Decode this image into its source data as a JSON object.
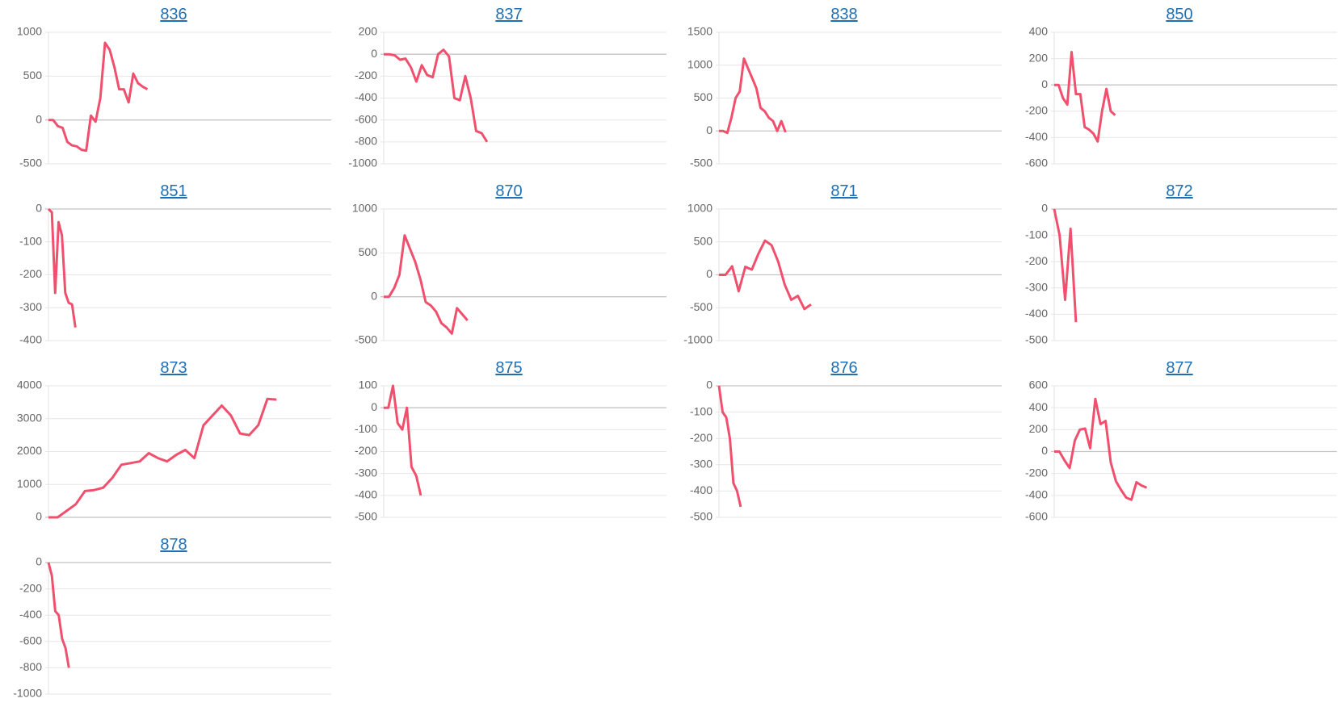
{
  "chart_data": [
    {
      "type": "line",
      "title": "836",
      "color": "#f0506e",
      "grid": true,
      "xlim": [
        0,
        60
      ],
      "ylim": [
        -500,
        1000
      ],
      "yticks": [
        -500,
        0,
        500,
        1000
      ],
      "values": [
        0,
        0,
        -70,
        -90,
        -250,
        -290,
        -300,
        -340,
        -350,
        50,
        -20,
        250,
        880,
        800,
        600,
        350,
        350,
        200,
        530,
        420,
        380,
        350
      ]
    },
    {
      "type": "line",
      "title": "837",
      "color": "#f0506e",
      "grid": true,
      "xlim": [
        0,
        52
      ],
      "ylim": [
        -1000,
        200
      ],
      "yticks": [
        -1000,
        -800,
        -600,
        -400,
        -200,
        0,
        200
      ],
      "values": [
        0,
        0,
        -10,
        -50,
        -40,
        -120,
        -250,
        -100,
        -190,
        -210,
        0,
        40,
        -20,
        -400,
        -420,
        -200,
        -400,
        -700,
        -720,
        -800
      ]
    },
    {
      "type": "line",
      "title": "838",
      "color": "#f0506e",
      "grid": true,
      "xlim": [
        0,
        68
      ],
      "ylim": [
        -500,
        1500
      ],
      "yticks": [
        -500,
        0,
        500,
        1000,
        1500
      ],
      "values": [
        0,
        0,
        -30,
        200,
        500,
        600,
        1100,
        950,
        800,
        650,
        350,
        300,
        200,
        150,
        0,
        150,
        -20
      ]
    },
    {
      "type": "line",
      "title": "850",
      "color": "#f0506e",
      "grid": true,
      "xlim": [
        0,
        65
      ],
      "ylim": [
        -600,
        400
      ],
      "yticks": [
        -600,
        -400,
        -200,
        0,
        200,
        400
      ],
      "values": [
        0,
        0,
        -100,
        -150,
        250,
        -70,
        -70,
        -320,
        -340,
        -370,
        -430,
        -200,
        -30,
        -200,
        -230
      ]
    },
    {
      "type": "line",
      "title": "851",
      "color": "#f0506e",
      "grid": true,
      "xlim": [
        0,
        84
      ],
      "ylim": [
        -400,
        0
      ],
      "yticks": [
        -400,
        -300,
        -200,
        -100,
        0
      ],
      "values": [
        0,
        -10,
        -255,
        -40,
        -80,
        -255,
        -285,
        -290,
        -360
      ]
    },
    {
      "type": "line",
      "title": "870",
      "color": "#f0506e",
      "grid": true,
      "xlim": [
        0,
        54
      ],
      "ylim": [
        -500,
        1000
      ],
      "yticks": [
        -500,
        0,
        500,
        1000
      ],
      "values": [
        0,
        0,
        100,
        250,
        700,
        550,
        400,
        200,
        -60,
        -100,
        -170,
        -300,
        -350,
        -420,
        -130,
        -200,
        -270
      ]
    },
    {
      "type": "line",
      "title": "871",
      "color": "#f0506e",
      "grid": true,
      "xlim": [
        0,
        43
      ],
      "ylim": [
        -1000,
        1000
      ],
      "yticks": [
        -1000,
        -500,
        0,
        500,
        1000
      ],
      "values": [
        0,
        0,
        130,
        -250,
        120,
        80,
        320,
        520,
        450,
        200,
        -150,
        -380,
        -320,
        -520,
        -450
      ]
    },
    {
      "type": "line",
      "title": "872",
      "color": "#f0506e",
      "grid": true,
      "xlim": [
        0,
        52
      ],
      "ylim": [
        -500,
        0
      ],
      "yticks": [
        -500,
        -400,
        -300,
        -200,
        -100,
        0
      ],
      "values": [
        0,
        -100,
        -345,
        -75,
        -430
      ]
    },
    {
      "type": "line",
      "title": "873",
      "color": "#f0506e",
      "grid": true,
      "xlim": [
        0,
        31
      ],
      "ylim": [
        0,
        4000
      ],
      "yticks": [
        0,
        1000,
        2000,
        3000,
        4000
      ],
      "values": [
        0,
        0,
        200,
        400,
        800,
        830,
        900,
        1200,
        1600,
        1650,
        1700,
        1950,
        1800,
        1700,
        1900,
        2050,
        1800,
        2800,
        3100,
        3400,
        3100,
        2550,
        2500,
        2800,
        3600,
        3580
      ]
    },
    {
      "type": "line",
      "title": "875",
      "color": "#f0506e",
      "grid": true,
      "xlim": [
        0,
        61
      ],
      "ylim": [
        -500,
        100
      ],
      "yticks": [
        -500,
        -400,
        -300,
        -200,
        -100,
        0,
        100
      ],
      "values": [
        0,
        0,
        100,
        -70,
        -100,
        0,
        -270,
        -310,
        -400
      ]
    },
    {
      "type": "line",
      "title": "876",
      "color": "#f0506e",
      "grid": true,
      "xlim": [
        0,
        78
      ],
      "ylim": [
        -500,
        0
      ],
      "yticks": [
        -500,
        -400,
        -300,
        -200,
        -100,
        0
      ],
      "values": [
        0,
        -100,
        -120,
        -200,
        -370,
        -400,
        -460
      ]
    },
    {
      "type": "line",
      "title": "877",
      "color": "#f0506e",
      "grid": true,
      "xlim": [
        0,
        55
      ],
      "ylim": [
        -600,
        600
      ],
      "yticks": [
        -600,
        -400,
        -200,
        0,
        200,
        400,
        600
      ],
      "values": [
        0,
        0,
        -80,
        -150,
        100,
        200,
        210,
        30,
        480,
        250,
        280,
        -100,
        -270,
        -350,
        -420,
        -440,
        -280,
        -310,
        -330
      ]
    },
    {
      "type": "line",
      "title": "878",
      "color": "#f0506e",
      "grid": true,
      "xlim": [
        0,
        83
      ],
      "ylim": [
        -1000,
        0
      ],
      "yticks": [
        -1000,
        -800,
        -600,
        -400,
        -200,
        0
      ],
      "values": [
        0,
        -100,
        -370,
        -400,
        -580,
        -650,
        -800
      ]
    }
  ]
}
